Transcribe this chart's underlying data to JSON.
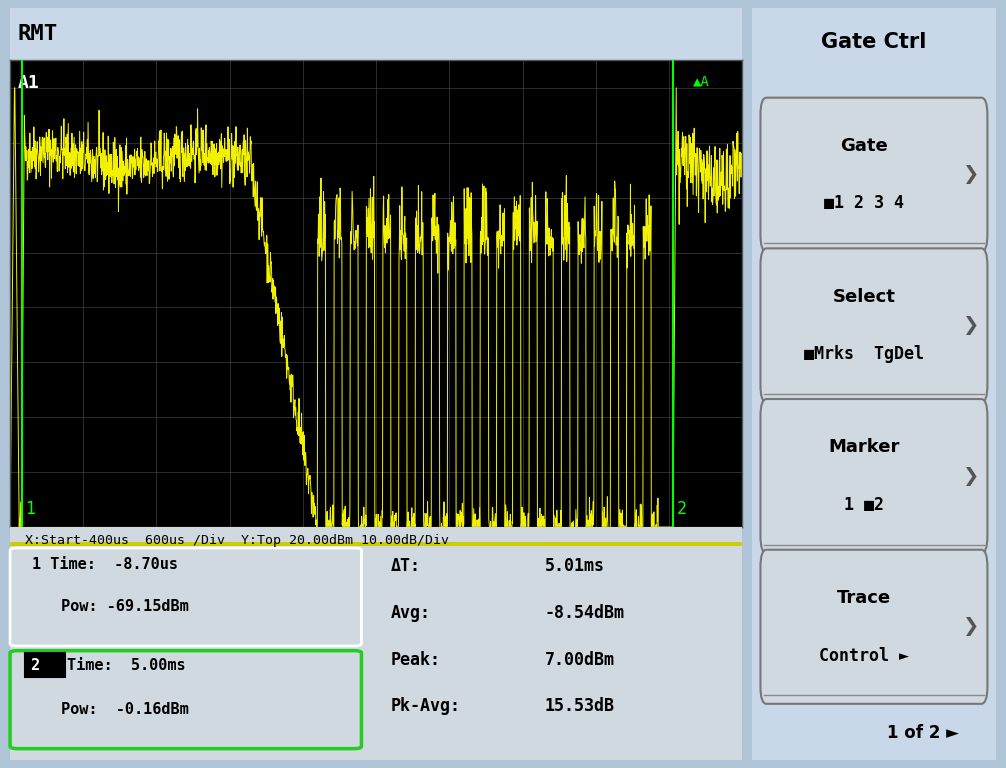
{
  "title": "RMT",
  "gate_ctrl_title": "Gate Ctrl",
  "bg_color": "#b0c4d8",
  "screen_bg": "#000000",
  "trace_color": "#ffff00",
  "grid_color": "#404040",
  "marker1_color": "#00ff00",
  "marker2_color": "#00ff00",
  "x_label": "X:Start-400us  600us /Div  Y:Top 20.00dBm 10.00dB/Div",
  "marker1_time": "-8.70us",
  "marker1_pow": "-69.15dBm",
  "marker2_time": "5.00ms",
  "marker2_pow": "-0.16dBm",
  "delta_t": "5.01ms",
  "avg": "-8.54dBm",
  "peak": "7.00dBm",
  "pk_avg": "15.53dB",
  "panel_bg": "#c8d8e8",
  "info_bg": "#d0d8e0",
  "btn_bg": "#d0d8e0"
}
